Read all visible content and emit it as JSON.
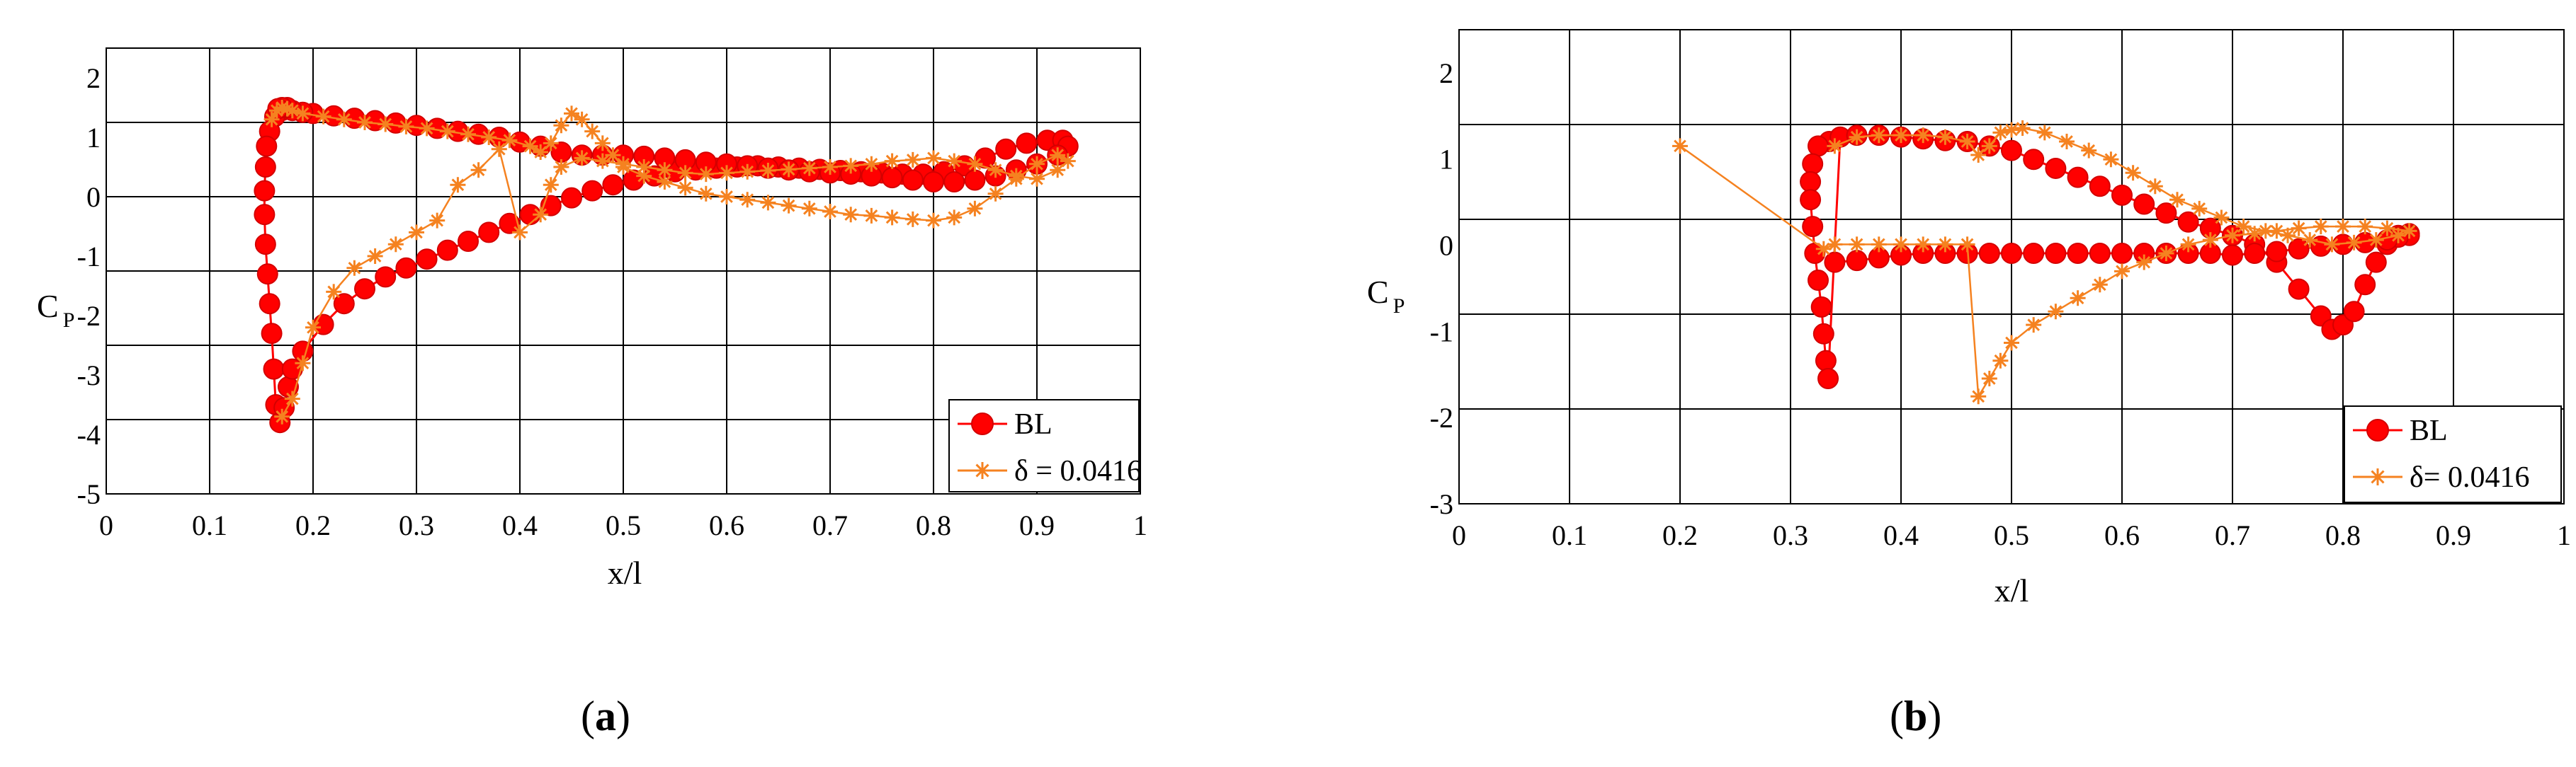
{
  "chart_data": [
    {
      "type": "scatter",
      "panel_label": {
        "open": "(",
        "letter": "a",
        "close": ")"
      },
      "xlabel": "x/l",
      "ylabel": {
        "main": "C",
        "sub": "P"
      },
      "xlim": [
        0,
        1
      ],
      "ylim": [
        -5,
        2.5
      ],
      "xticks": [
        "0",
        "0.1",
        "0.2",
        "0.3",
        "0.4",
        "0.5",
        "0.6",
        "0.7",
        "0.8",
        "0.9",
        "1"
      ],
      "yticks": [
        "-5",
        "-4",
        "-3",
        "-2",
        "-1",
        "0",
        "1",
        "2"
      ],
      "grid": true,
      "legend": {
        "position": "bottom-right",
        "entries": [
          "BL",
          "δ = 0.0416"
        ]
      },
      "series": [
        {
          "name": "BL",
          "marker": "circle",
          "color": "#ff0000",
          "edge_color": "#d40000",
          "x": [
            0.17,
            0.163,
            0.158,
            0.155,
            0.154,
            0.153,
            0.153,
            0.154,
            0.156,
            0.158,
            0.16,
            0.162,
            0.164,
            0.168,
            0.172,
            0.176,
            0.18,
            0.19,
            0.21,
            0.23,
            0.25,
            0.27,
            0.29,
            0.31,
            0.33,
            0.35,
            0.37,
            0.39,
            0.41,
            0.43,
            0.45,
            0.47,
            0.49,
            0.51,
            0.53,
            0.55,
            0.57,
            0.59,
            0.61,
            0.63,
            0.65,
            0.67,
            0.69,
            0.71,
            0.73,
            0.75,
            0.77,
            0.79,
            0.81,
            0.83,
            0.85,
            0.87,
            0.89,
            0.91,
            0.925,
            0.93,
            0.92,
            0.9,
            0.88,
            0.86,
            0.84,
            0.82,
            0.8,
            0.78,
            0.76,
            0.74,
            0.72,
            0.7,
            0.68,
            0.66,
            0.64,
            0.62,
            0.6,
            0.58,
            0.56,
            0.54,
            0.52,
            0.5,
            0.48,
            0.46,
            0.44,
            0.42,
            0.4,
            0.38,
            0.36,
            0.34,
            0.32,
            0.3,
            0.28,
            0.26,
            0.24,
            0.22,
            0.2,
            0.19,
            0.18,
            0.175,
            0.17,
            0.166
          ],
          "y": [
            1.45,
            1.35,
            1.1,
            0.85,
            0.5,
            0.1,
            -0.3,
            -0.8,
            -1.3,
            -1.8,
            -2.3,
            -2.9,
            -3.5,
            -3.8,
            -3.55,
            -3.2,
            -2.9,
            -2.6,
            -2.15,
            -1.8,
            -1.55,
            -1.35,
            -1.2,
            -1.05,
            -0.9,
            -0.75,
            -0.6,
            -0.45,
            -0.3,
            -0.15,
            -0.02,
            0.1,
            0.2,
            0.28,
            0.35,
            0.42,
            0.45,
            0.48,
            0.5,
            0.52,
            0.5,
            0.48,
            0.46,
            0.44,
            0.42,
            0.4,
            0.38,
            0.38,
            0.42,
            0.52,
            0.65,
            0.8,
            0.9,
            0.95,
            0.95,
            0.85,
            0.7,
            0.55,
            0.45,
            0.35,
            0.28,
            0.25,
            0.25,
            0.28,
            0.32,
            0.35,
            0.38,
            0.4,
            0.42,
            0.45,
            0.48,
            0.52,
            0.55,
            0.58,
            0.62,
            0.65,
            0.68,
            0.7,
            0.7,
            0.7,
            0.75,
            0.85,
            0.92,
            1.0,
            1.05,
            1.1,
            1.15,
            1.2,
            1.24,
            1.28,
            1.32,
            1.36,
            1.4,
            1.42,
            1.45,
            1.5,
            1.5,
            1.48
          ]
        },
        {
          "name": "δ = 0.0416",
          "marker": "star",
          "color": "#f58220",
          "x": [
            0.16,
            0.165,
            0.17,
            0.175,
            0.18,
            0.19,
            0.21,
            0.23,
            0.25,
            0.27,
            0.29,
            0.31,
            0.33,
            0.35,
            0.37,
            0.39,
            0.41,
            0.42,
            0.43,
            0.44,
            0.45,
            0.46,
            0.47,
            0.48,
            0.49,
            0.5,
            0.52,
            0.54,
            0.56,
            0.58,
            0.6,
            0.62,
            0.64,
            0.66,
            0.68,
            0.7,
            0.72,
            0.74,
            0.76,
            0.78,
            0.8,
            0.82,
            0.84,
            0.86,
            0.88,
            0.9,
            0.92,
            0.93,
            0.92,
            0.9,
            0.88,
            0.86,
            0.84,
            0.82,
            0.8,
            0.78,
            0.76,
            0.74,
            0.72,
            0.7,
            0.68,
            0.66,
            0.64,
            0.62,
            0.6,
            0.58,
            0.56,
            0.54,
            0.52,
            0.5,
            0.48,
            0.46,
            0.44,
            0.43,
            0.42,
            0.4,
            0.38,
            0.36,
            0.34,
            0.32,
            0.3,
            0.28,
            0.26,
            0.24,
            0.22,
            0.2,
            0.19,
            0.18,
            0.17
          ],
          "y": [
            1.3,
            1.45,
            1.5,
            1.48,
            1.45,
            1.4,
            1.35,
            1.3,
            1.25,
            1.22,
            1.18,
            1.15,
            1.1,
            1.05,
            1.0,
            0.95,
            0.85,
            0.75,
            0.9,
            1.2,
            1.4,
            1.3,
            1.1,
            0.9,
            0.7,
            0.5,
            0.35,
            0.25,
            0.15,
            0.05,
            0.0,
            -0.05,
            -0.1,
            -0.15,
            -0.2,
            -0.25,
            -0.3,
            -0.32,
            -0.35,
            -0.38,
            -0.4,
            -0.35,
            -0.2,
            0.05,
            0.3,
            0.55,
            0.7,
            0.6,
            0.45,
            0.3,
            0.35,
            0.45,
            0.55,
            0.6,
            0.65,
            0.62,
            0.6,
            0.55,
            0.52,
            0.5,
            0.48,
            0.46,
            0.44,
            0.42,
            0.4,
            0.38,
            0.4,
            0.45,
            0.5,
            0.55,
            0.6,
            0.65,
            0.5,
            0.2,
            -0.3,
            -0.6,
            0.8,
            0.45,
            0.2,
            -0.4,
            -0.6,
            -0.8,
            -1.0,
            -1.2,
            -1.6,
            -2.2,
            -2.8,
            -3.4,
            -3.7
          ]
        }
      ]
    },
    {
      "type": "scatter",
      "panel_label": {
        "open": "(",
        "letter": "b",
        "close": ")"
      },
      "xlabel": "x/l",
      "ylabel": {
        "main": "C",
        "sub": "P"
      },
      "xlim": [
        0,
        1
      ],
      "ylim": [
        -3,
        2.3
      ],
      "xticks": [
        "0",
        "0.1",
        "0.2",
        "0.3",
        "0.4",
        "0.5",
        "0.6",
        "0.7",
        "0.8",
        "0.9",
        "1"
      ],
      "yticks": [
        "-3",
        "-2",
        "-1",
        "0",
        "1",
        "2"
      ],
      "grid": true,
      "legend": {
        "position": "bottom-right",
        "entries": [
          "BL",
          "δ= 0.0416"
        ]
      },
      "series": [
        {
          "name": "BL",
          "marker": "circle",
          "color": "#ff0000",
          "edge_color": "#d40000",
          "x": [
            0.335,
            0.325,
            0.32,
            0.318,
            0.318,
            0.32,
            0.322,
            0.325,
            0.328,
            0.33,
            0.332,
            0.334,
            0.345,
            0.36,
            0.38,
            0.4,
            0.42,
            0.44,
            0.46,
            0.48,
            0.5,
            0.52,
            0.54,
            0.56,
            0.58,
            0.6,
            0.62,
            0.64,
            0.66,
            0.68,
            0.7,
            0.72,
            0.74,
            0.76,
            0.78,
            0.79,
            0.8,
            0.81,
            0.82,
            0.83,
            0.84,
            0.85,
            0.86,
            0.86,
            0.85,
            0.84,
            0.82,
            0.8,
            0.78,
            0.76,
            0.74,
            0.72,
            0.7,
            0.68,
            0.66,
            0.64,
            0.62,
            0.6,
            0.58,
            0.56,
            0.54,
            0.52,
            0.5,
            0.48,
            0.46,
            0.44,
            0.42,
            0.4,
            0.38,
            0.36,
            0.34
          ],
          "y": [
            1.05,
            1.0,
            0.8,
            0.6,
            0.4,
            0.1,
            -0.2,
            -0.5,
            -0.8,
            -1.1,
            -1.4,
            -1.6,
            1.1,
            1.12,
            1.12,
            1.1,
            1.08,
            1.06,
            1.05,
            1.0,
            0.95,
            0.85,
            0.75,
            0.65,
            0.55,
            0.45,
            0.35,
            0.25,
            0.15,
            0.08,
            0.0,
            -0.1,
            -0.3,
            -0.6,
            -0.9,
            -1.05,
            -1.0,
            -0.85,
            -0.55,
            -0.3,
            -0.1,
            0.0,
            0.02,
            0.0,
            -0.02,
            -0.05,
            -0.08,
            -0.1,
            -0.12,
            -0.15,
            -0.18,
            -0.2,
            -0.22,
            -0.2,
            -0.2,
            -0.2,
            -0.2,
            -0.2,
            -0.2,
            -0.2,
            -0.2,
            -0.2,
            -0.2,
            -0.2,
            -0.2,
            -0.2,
            -0.2,
            -0.22,
            -0.25,
            -0.28,
            -0.3
          ]
        },
        {
          "name": "δ= 0.0416",
          "marker": "star",
          "color": "#f58220",
          "x": [
            0.2,
            0.33,
            0.34,
            0.36,
            0.38,
            0.4,
            0.42,
            0.44,
            0.46,
            0.47,
            0.48,
            0.49,
            0.5,
            0.52,
            0.54,
            0.56,
            0.58,
            0.6,
            0.62,
            0.64,
            0.66,
            0.68,
            0.7,
            0.72,
            0.74,
            0.76,
            0.78,
            0.8,
            0.82,
            0.84,
            0.86,
            0.85,
            0.83,
            0.81,
            0.79,
            0.77,
            0.75,
            0.73,
            0.71,
            0.69,
            0.67,
            0.65,
            0.63,
            0.61,
            0.59,
            0.57,
            0.55,
            0.53,
            0.51,
            0.5,
            0.49,
            0.48,
            0.47,
            0.46,
            0.44,
            0.42,
            0.4,
            0.38,
            0.36,
            0.34
          ],
          "y": [
            1.0,
            -0.15,
            -0.1,
            -0.1,
            -0.1,
            -0.1,
            -0.1,
            -0.1,
            -0.1,
            -1.8,
            -1.6,
            -1.4,
            -1.2,
            -1.0,
            -0.85,
            -0.7,
            -0.55,
            -0.4,
            -0.3,
            -0.2,
            -0.1,
            -0.05,
            0.0,
            0.02,
            0.05,
            0.08,
            0.1,
            0.1,
            0.1,
            0.08,
            0.05,
            0.0,
            -0.05,
            -0.08,
            -0.1,
            -0.05,
            0.0,
            0.05,
            0.1,
            0.2,
            0.3,
            0.4,
            0.55,
            0.7,
            0.85,
            0.95,
            1.05,
            1.15,
            1.2,
            1.18,
            1.15,
            1.0,
            0.9,
            1.05,
            1.1,
            1.12,
            1.12,
            1.12,
            1.1,
            1.0
          ]
        }
      ]
    }
  ]
}
